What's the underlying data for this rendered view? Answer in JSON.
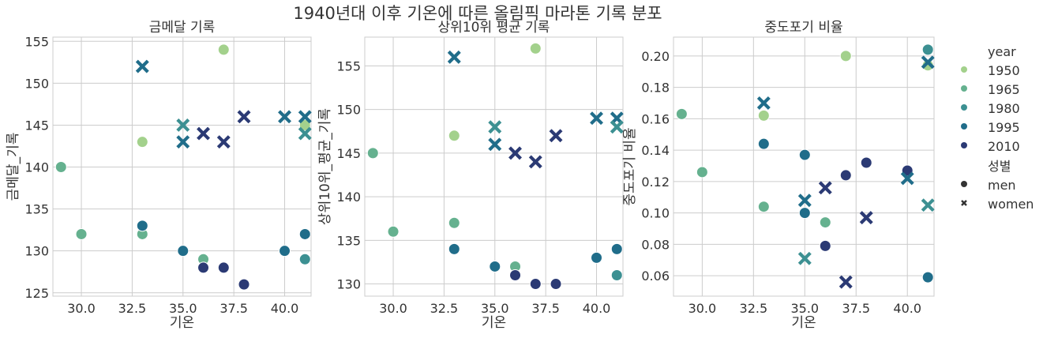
{
  "suptitle": "1940년대 이후 기온에 따른 올림픽 마라톤 기록 분포",
  "legend": {
    "year_title": "year",
    "year_items": [
      {
        "label": "1950",
        "color": "#a3d18c"
      },
      {
        "label": "1965",
        "color": "#65b18f"
      },
      {
        "label": "1980",
        "color": "#3c9092"
      },
      {
        "label": "1995",
        "color": "#206d8a"
      },
      {
        "label": "2010",
        "color": "#2b3a74"
      }
    ],
    "sex_title": "성별",
    "sex_items": [
      {
        "label": "men",
        "marker": "circle"
      },
      {
        "label": "women",
        "marker": "x"
      }
    ]
  },
  "chart_data": [
    {
      "type": "scatter",
      "title": "금메달 기록",
      "xlabel": "기온",
      "ylabel": "금메달_기록",
      "xlim": [
        28.6,
        41.3
      ],
      "ylim": [
        124.6,
        155.5
      ],
      "xticks": [
        30.0,
        32.5,
        35.0,
        37.5,
        40.0
      ],
      "xtick_labels": [
        "30.0",
        "32.5",
        "35.0",
        "37.5",
        "40.0"
      ],
      "yticks": [
        125,
        130,
        135,
        140,
        145,
        150,
        155
      ],
      "ytick_labels": [
        "125",
        "130",
        "135",
        "140",
        "145",
        "150",
        "155"
      ],
      "points": [
        {
          "x": 37,
          "y": 154,
          "year": 1950,
          "sex": "men"
        },
        {
          "x": 33,
          "y": 143,
          "year": 1950,
          "sex": "men"
        },
        {
          "x": 41,
          "y": 145,
          "year": 1950,
          "sex": "men"
        },
        {
          "x": 29,
          "y": 140,
          "year": 1965,
          "sex": "men"
        },
        {
          "x": 30,
          "y": 132,
          "year": 1965,
          "sex": "men"
        },
        {
          "x": 33,
          "y": 132,
          "year": 1965,
          "sex": "men"
        },
        {
          "x": 36,
          "y": 129,
          "year": 1965,
          "sex": "men"
        },
        {
          "x": 41,
          "y": 129,
          "year": 1980,
          "sex": "men"
        },
        {
          "x": 33,
          "y": 133,
          "year": 1995,
          "sex": "men"
        },
        {
          "x": 35,
          "y": 130,
          "year": 1995,
          "sex": "men"
        },
        {
          "x": 40,
          "y": 130,
          "year": 1995,
          "sex": "men"
        },
        {
          "x": 41,
          "y": 132,
          "year": 1995,
          "sex": "men"
        },
        {
          "x": 36,
          "y": 128,
          "year": 2010,
          "sex": "men"
        },
        {
          "x": 37,
          "y": 128,
          "year": 2010,
          "sex": "men"
        },
        {
          "x": 38,
          "y": 126,
          "year": 2010,
          "sex": "men"
        },
        {
          "x": 33,
          "y": 152,
          "year": 1995,
          "sex": "women"
        },
        {
          "x": 35,
          "y": 145,
          "year": 1980,
          "sex": "women"
        },
        {
          "x": 35,
          "y": 143,
          "year": 1995,
          "sex": "women"
        },
        {
          "x": 36,
          "y": 144,
          "year": 2010,
          "sex": "women"
        },
        {
          "x": 37,
          "y": 143,
          "year": 2010,
          "sex": "women"
        },
        {
          "x": 38,
          "y": 146,
          "year": 2010,
          "sex": "women"
        },
        {
          "x": 40,
          "y": 146,
          "year": 1995,
          "sex": "women"
        },
        {
          "x": 41,
          "y": 146,
          "year": 1995,
          "sex": "women"
        },
        {
          "x": 41,
          "y": 144,
          "year": 1980,
          "sex": "women"
        }
      ]
    },
    {
      "type": "scatter",
      "title": "상위10위 평균 기록",
      "xlabel": "기온",
      "ylabel": "상위10위_평균_기록",
      "xlim": [
        28.6,
        41.3
      ],
      "ylim": [
        128.6,
        158.3
      ],
      "xticks": [
        30.0,
        32.5,
        35.0,
        37.5,
        40.0
      ],
      "xtick_labels": [
        "30.0",
        "32.5",
        "35.0",
        "37.5",
        "40.0"
      ],
      "yticks": [
        130,
        135,
        140,
        145,
        150,
        155
      ],
      "ytick_labels": [
        "130",
        "135",
        "140",
        "145",
        "150",
        "155"
      ],
      "points": [
        {
          "x": 37,
          "y": 157,
          "year": 1950,
          "sex": "men"
        },
        {
          "x": 33,
          "y": 147,
          "year": 1950,
          "sex": "men"
        },
        {
          "x": 33,
          "y": 137,
          "year": 1965,
          "sex": "men"
        },
        {
          "x": 29,
          "y": 145,
          "year": 1965,
          "sex": "men"
        },
        {
          "x": 30,
          "y": 136,
          "year": 1965,
          "sex": "men"
        },
        {
          "x": 36,
          "y": 132,
          "year": 1965,
          "sex": "men"
        },
        {
          "x": 41,
          "y": 131,
          "year": 1980,
          "sex": "men"
        },
        {
          "x": 33,
          "y": 134,
          "year": 1995,
          "sex": "men"
        },
        {
          "x": 35,
          "y": 132,
          "year": 1995,
          "sex": "men"
        },
        {
          "x": 40,
          "y": 133,
          "year": 1995,
          "sex": "men"
        },
        {
          "x": 41,
          "y": 134,
          "year": 1995,
          "sex": "men"
        },
        {
          "x": 36,
          "y": 131,
          "year": 2010,
          "sex": "men"
        },
        {
          "x": 37,
          "y": 130,
          "year": 2010,
          "sex": "men"
        },
        {
          "x": 38,
          "y": 130,
          "year": 2010,
          "sex": "men"
        },
        {
          "x": 33,
          "y": 156,
          "year": 1995,
          "sex": "women"
        },
        {
          "x": 35,
          "y": 148,
          "year": 1980,
          "sex": "women"
        },
        {
          "x": 35,
          "y": 146,
          "year": 1995,
          "sex": "women"
        },
        {
          "x": 36,
          "y": 145,
          "year": 2010,
          "sex": "women"
        },
        {
          "x": 37,
          "y": 144,
          "year": 2010,
          "sex": "women"
        },
        {
          "x": 38,
          "y": 147,
          "year": 2010,
          "sex": "women"
        },
        {
          "x": 40,
          "y": 149,
          "year": 1995,
          "sex": "women"
        },
        {
          "x": 41,
          "y": 149,
          "year": 1995,
          "sex": "women"
        },
        {
          "x": 41,
          "y": 148,
          "year": 1980,
          "sex": "women"
        }
      ]
    },
    {
      "type": "scatter",
      "title": "중도포기 비율",
      "xlabel": "기온",
      "ylabel": "중도포기 비율",
      "xlim": [
        28.6,
        41.3
      ],
      "ylim": [
        0.047,
        0.212
      ],
      "xticks": [
        30.0,
        32.5,
        35.0,
        37.5,
        40.0
      ],
      "xtick_labels": [
        "30.0",
        "32.5",
        "35.0",
        "37.5",
        "40.0"
      ],
      "yticks": [
        0.06,
        0.08,
        0.1,
        0.12,
        0.14,
        0.16,
        0.18,
        0.2
      ],
      "ytick_labels": [
        "0.06",
        "0.08",
        "0.10",
        "0.12",
        "0.14",
        "0.16",
        "0.18",
        "0.20"
      ],
      "points": [
        {
          "x": 37,
          "y": 0.2,
          "year": 1950,
          "sex": "men"
        },
        {
          "x": 33,
          "y": 0.162,
          "year": 1950,
          "sex": "men"
        },
        {
          "x": 41,
          "y": 0.194,
          "year": 1950,
          "sex": "men"
        },
        {
          "x": 29,
          "y": 0.163,
          "year": 1965,
          "sex": "men"
        },
        {
          "x": 30,
          "y": 0.126,
          "year": 1965,
          "sex": "men"
        },
        {
          "x": 33,
          "y": 0.104,
          "year": 1965,
          "sex": "men"
        },
        {
          "x": 36,
          "y": 0.094,
          "year": 1965,
          "sex": "men"
        },
        {
          "x": 41,
          "y": 0.204,
          "year": 1980,
          "sex": "men"
        },
        {
          "x": 33,
          "y": 0.144,
          "year": 1995,
          "sex": "men"
        },
        {
          "x": 35,
          "y": 0.137,
          "year": 1995,
          "sex": "men"
        },
        {
          "x": 35,
          "y": 0.1,
          "year": 1995,
          "sex": "men"
        },
        {
          "x": 41,
          "y": 0.059,
          "year": 1995,
          "sex": "men"
        },
        {
          "x": 36,
          "y": 0.079,
          "year": 2010,
          "sex": "men"
        },
        {
          "x": 37,
          "y": 0.124,
          "year": 2010,
          "sex": "men"
        },
        {
          "x": 38,
          "y": 0.132,
          "year": 2010,
          "sex": "men"
        },
        {
          "x": 40,
          "y": 0.127,
          "year": 2010,
          "sex": "men"
        },
        {
          "x": 33,
          "y": 0.17,
          "year": 1995,
          "sex": "women"
        },
        {
          "x": 35,
          "y": 0.108,
          "year": 1995,
          "sex": "women"
        },
        {
          "x": 35,
          "y": 0.071,
          "year": 1980,
          "sex": "women"
        },
        {
          "x": 36,
          "y": 0.116,
          "year": 2010,
          "sex": "women"
        },
        {
          "x": 37,
          "y": 0.056,
          "year": 2010,
          "sex": "women"
        },
        {
          "x": 38,
          "y": 0.097,
          "year": 2010,
          "sex": "women"
        },
        {
          "x": 40,
          "y": 0.122,
          "year": 1995,
          "sex": "women"
        },
        {
          "x": 41,
          "y": 0.196,
          "year": 1995,
          "sex": "women"
        },
        {
          "x": 41,
          "y": 0.105,
          "year": 1980,
          "sex": "women"
        }
      ]
    }
  ]
}
